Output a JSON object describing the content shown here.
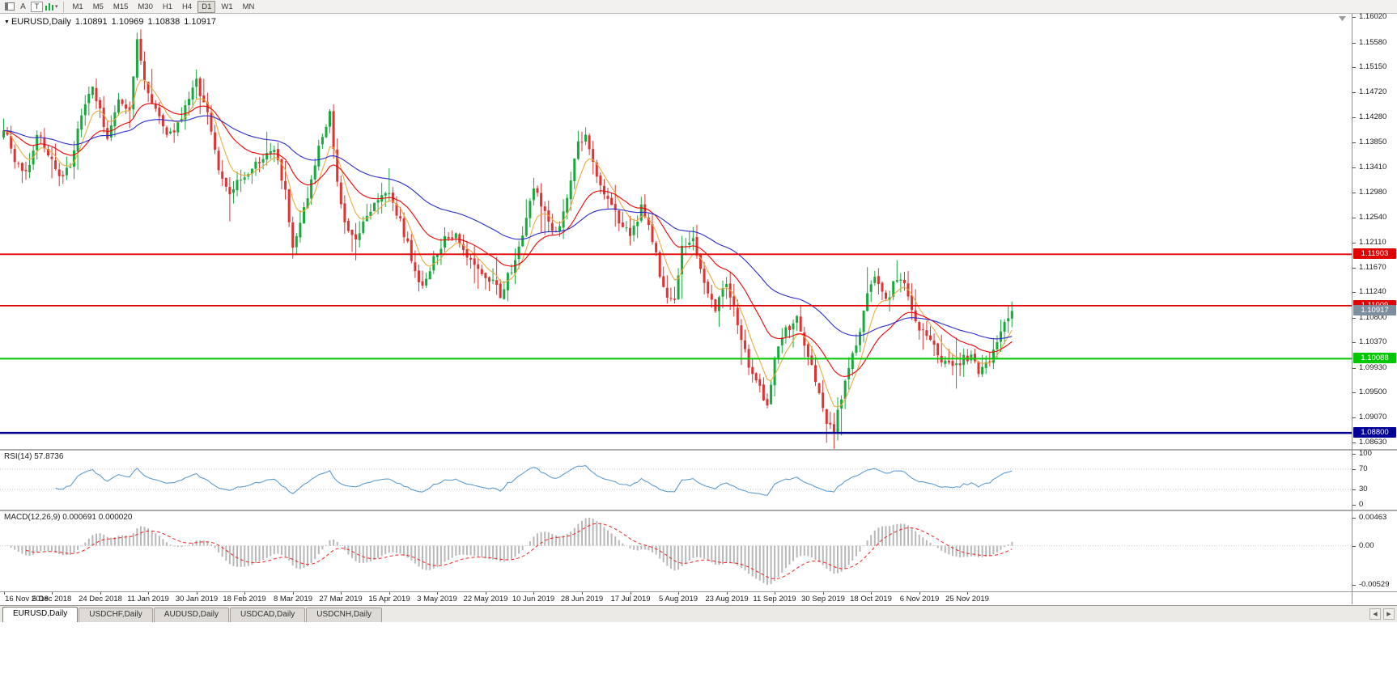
{
  "toolbar": {
    "icon_a": "A",
    "icon_t": "T",
    "chevron_glyph": "▾",
    "timeframes": [
      {
        "label": "M1",
        "active": false
      },
      {
        "label": "M5",
        "active": false
      },
      {
        "label": "M15",
        "active": false
      },
      {
        "label": "M30",
        "active": false
      },
      {
        "label": "H1",
        "active": false
      },
      {
        "label": "H4",
        "active": false
      },
      {
        "label": "D1",
        "active": true
      },
      {
        "label": "W1",
        "active": false
      },
      {
        "label": "MN",
        "active": false
      }
    ]
  },
  "chart": {
    "collapse_glyph": "▼",
    "symbol_label": "EURUSD,Daily",
    "open": "1.10891",
    "high": "1.10969",
    "low": "1.10838",
    "close": "1.10917"
  },
  "chart_data": {
    "type": "candlestick",
    "symbol": "EURUSD",
    "timeframe": "Daily",
    "bars": 273,
    "last_close": 1.10917,
    "label_every_bars": 13,
    "price_axis": {
      "top": 1.1608,
      "bottom": 1.0852,
      "ticks": [
        "1.16020",
        "1.15580",
        "1.15150",
        "1.14720",
        "1.14280",
        "1.13850",
        "1.13410",
        "1.12980",
        "1.12540",
        "1.12110",
        "1.11670",
        "1.11240",
        "1.10800",
        "1.10370",
        "1.09930",
        "1.09500",
        "1.09070",
        "1.08630"
      ]
    },
    "date_labels": [
      "16 Nov 2018",
      "5 Dec 2018",
      "24 Dec 2018",
      "11 Jan 2019",
      "30 Jan 2019",
      "18 Feb 2019",
      "8 Mar 2019",
      "27 Mar 2019",
      "15 Apr 2019",
      "3 May 2019",
      "22 May 2019",
      "10 Jun 2019",
      "28 Jun 2019",
      "17 Jul 2019",
      "5 Aug 2019",
      "23 Aug 2019",
      "11 Sep 2019",
      "30 Sep 2019",
      "18 Oct 2019",
      "6 Nov 2019",
      "25 Nov 2019"
    ],
    "waypoints": [
      [
        0,
        1.1412
      ],
      [
        3,
        1.1352
      ],
      [
        6,
        1.133
      ],
      [
        9,
        1.1398
      ],
      [
        12,
        1.1368
      ],
      [
        15,
        1.1322
      ],
      [
        18,
        1.1345
      ],
      [
        21,
        1.143
      ],
      [
        24,
        1.148
      ],
      [
        26,
        1.144
      ],
      [
        28,
        1.1392
      ],
      [
        31,
        1.1452
      ],
      [
        34,
        1.1438
      ],
      [
        36,
        1.1558
      ],
      [
        38,
        1.1495
      ],
      [
        41,
        1.144
      ],
      [
        44,
        1.139
      ],
      [
        47,
        1.1415
      ],
      [
        50,
        1.146
      ],
      [
        52,
        1.1488
      ],
      [
        55,
        1.144
      ],
      [
        58,
        1.133
      ],
      [
        61,
        1.1295
      ],
      [
        64,
        1.132
      ],
      [
        67,
        1.134
      ],
      [
        70,
        1.136
      ],
      [
        73,
        1.1375
      ],
      [
        76,
        1.13
      ],
      [
        78,
        1.12
      ],
      [
        80,
        1.124
      ],
      [
        83,
        1.132
      ],
      [
        86,
        1.14
      ],
      [
        88,
        1.1438
      ],
      [
        90,
        1.131
      ],
      [
        92,
        1.124
      ],
      [
        95,
        1.1215
      ],
      [
        98,
        1.126
      ],
      [
        101,
        1.129
      ],
      [
        104,
        1.13
      ],
      [
        107,
        1.1245
      ],
      [
        110,
        1.1185
      ],
      [
        113,
        1.113
      ],
      [
        116,
        1.118
      ],
      [
        119,
        1.1215
      ],
      [
        122,
        1.123
      ],
      [
        125,
        1.1185
      ],
      [
        128,
        1.116
      ],
      [
        131,
        1.115
      ],
      [
        134,
        1.112
      ],
      [
        137,
        1.1165
      ],
      [
        140,
        1.123
      ],
      [
        143,
        1.131
      ],
      [
        146,
        1.126
      ],
      [
        149,
        1.1225
      ],
      [
        152,
        1.129
      ],
      [
        155,
        1.138
      ],
      [
        157,
        1.1395
      ],
      [
        160,
        1.133
      ],
      [
        163,
        1.1285
      ],
      [
        166,
        1.125
      ],
      [
        169,
        1.122
      ],
      [
        172,
        1.127
      ],
      [
        175,
        1.1215
      ],
      [
        178,
        1.113
      ],
      [
        181,
        1.1105
      ],
      [
        183,
        1.12
      ],
      [
        186,
        1.1215
      ],
      [
        189,
        1.114
      ],
      [
        192,
        1.1095
      ],
      [
        195,
        1.114
      ],
      [
        198,
        1.107
      ],
      [
        201,
        1.1
      ],
      [
        204,
        1.0955
      ],
      [
        206,
        1.093
      ],
      [
        208,
        1.101
      ],
      [
        211,
        1.106
      ],
      [
        214,
        1.1075
      ],
      [
        217,
        1.1015
      ],
      [
        220,
        1.0945
      ],
      [
        222,
        1.0895
      ],
      [
        224,
        1.0882
      ],
      [
        227,
        1.0975
      ],
      [
        230,
        1.103
      ],
      [
        233,
        1.112
      ],
      [
        235,
        1.1155
      ],
      [
        238,
        1.111
      ],
      [
        241,
        1.115
      ],
      [
        244,
        1.1125
      ],
      [
        246,
        1.1075
      ],
      [
        249,
        1.1045
      ],
      [
        252,
        1.1015
      ],
      [
        255,
        1.0995
      ],
      [
        258,
        1.1005
      ],
      [
        261,
        1.1015
      ],
      [
        263,
        1.0985
      ],
      [
        266,
        1.101
      ],
      [
        269,
        1.106
      ],
      [
        272,
        1.1092
      ]
    ],
    "candle_colors": {
      "up": "#18a93c",
      "down": "#e03232"
    },
    "moving_averages": [
      {
        "period": 7,
        "color": "#eda93f"
      },
      {
        "period": 22,
        "color": "#f20000"
      },
      {
        "period": 55,
        "color": "#2b2bd0"
      }
    ],
    "hlines": [
      {
        "price": 1.11903,
        "label": "1.11903",
        "color": "#e00000",
        "width": 1.8
      },
      {
        "price": 1.11009,
        "label": "1.11009",
        "color": "#e00000",
        "width": 1.8
      },
      {
        "price": 1.10088,
        "label": "1.10088",
        "color": "#00c800",
        "width": 2
      },
      {
        "price": 1.088,
        "label": "1.08800",
        "color": "#000099",
        "width": 2.5
      }
    ],
    "current_price": {
      "price": 1.10917,
      "label": "1.10917",
      "color": "#7d8e9f"
    },
    "rsi": {
      "label": "RSI(14) 57.8736",
      "period": 14,
      "color": "#4f94cd",
      "levels": [
        70,
        30
      ],
      "ticks": [
        "100",
        "70",
        "30",
        "0"
      ]
    },
    "macd": {
      "label": "MACD(12,26,9) 0.000691 0.000020",
      "fast": 12,
      "slow": 26,
      "signal": 9,
      "hist_color": "#b8b8b8",
      "signal_color": "#f22222",
      "ticks": [
        "0.00463",
        "0.00",
        "-0.00529"
      ]
    }
  },
  "tab_bar": {
    "left_arrow": "◀",
    "right_arrow": "▶",
    "tabs": [
      {
        "label": "EURUSD,Daily",
        "active": true
      },
      {
        "label": "USDCHF,Daily",
        "active": false
      },
      {
        "label": "AUDUSD,Daily",
        "active": false
      },
      {
        "label": "USDCAD,Daily",
        "active": false
      },
      {
        "label": "USDCNH,Daily",
        "active": false
      }
    ]
  }
}
